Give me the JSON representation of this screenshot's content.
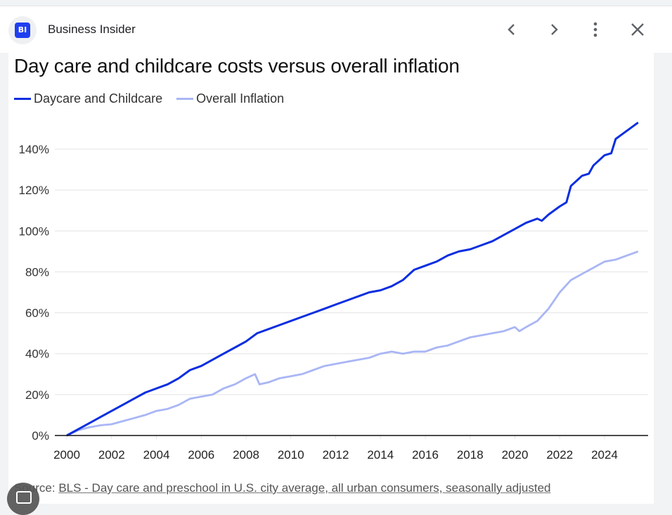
{
  "header": {
    "logo_text": "BI",
    "site_name": "Business Insider",
    "icons": [
      "chevron-left-icon",
      "chevron-right-icon",
      "more-vert-icon",
      "close-icon"
    ]
  },
  "colors": {
    "brand": "#1f3ff0",
    "daycare": "#0a2ee0",
    "inflation": "#a9b6f5"
  },
  "source": {
    "prefix": "Source: ",
    "link_text": "BLS - Day care and preschool in U.S. city average, all urban consumers, seasonally adjusted"
  },
  "chart_data": {
    "type": "line",
    "title": "Day care and childcare costs versus overall inflation",
    "xlabel": "",
    "ylabel": "",
    "legend_position": "top-left",
    "grid": true,
    "xlim": [
      2000,
      2025.6
    ],
    "ylim": [
      0,
      150
    ],
    "x_ticks": [
      "2000",
      "2002",
      "2004",
      "2006",
      "2008",
      "2010",
      "2012",
      "2014",
      "2016",
      "2018",
      "2020",
      "2022",
      "2024"
    ],
    "y_ticks": [
      "0%",
      "20%",
      "40%",
      "60%",
      "80%",
      "100%",
      "120%",
      "140%"
    ],
    "series": [
      {
        "name": "Daycare and Childcare",
        "x": [
          2000,
          2000.5,
          2001,
          2001.5,
          2002,
          2002.5,
          2003,
          2003.5,
          2004,
          2004.5,
          2005,
          2005.5,
          2006,
          2006.5,
          2007,
          2007.5,
          2008,
          2008.5,
          2009,
          2009.5,
          2010,
          2010.5,
          2011,
          2011.5,
          2012,
          2012.5,
          2013,
          2013.5,
          2014,
          2014.5,
          2015,
          2015.5,
          2016,
          2016.5,
          2017,
          2017.5,
          2018,
          2018.5,
          2019,
          2019.5,
          2020,
          2020.5,
          2021,
          2021.2,
          2021.5,
          2022,
          2022.3,
          2022.5,
          2023,
          2023.3,
          2023.5,
          2024,
          2024.3,
          2024.5,
          2025,
          2025.5
        ],
        "values": [
          0,
          3,
          6,
          9,
          12,
          15,
          18,
          21,
          23,
          25,
          28,
          32,
          34,
          37,
          40,
          43,
          46,
          50,
          52,
          54,
          56,
          58,
          60,
          62,
          64,
          66,
          68,
          70,
          71,
          73,
          76,
          81,
          83,
          85,
          88,
          90,
          91,
          93,
          95,
          98,
          101,
          104,
          106,
          105,
          108,
          112,
          114,
          122,
          127,
          128,
          132,
          137,
          138,
          145,
          149,
          153
        ]
      },
      {
        "name": "Overall Inflation",
        "x": [
          2000,
          2000.5,
          2001,
          2001.5,
          2002,
          2002.5,
          2003,
          2003.5,
          2004,
          2004.5,
          2005,
          2005.5,
          2006,
          2006.5,
          2007,
          2007.5,
          2008,
          2008.4,
          2008.6,
          2009,
          2009.5,
          2010,
          2010.5,
          2011,
          2011.5,
          2012,
          2012.5,
          2013,
          2013.5,
          2014,
          2014.5,
          2015,
          2015.5,
          2016,
          2016.5,
          2017,
          2017.5,
          2018,
          2018.5,
          2019,
          2019.5,
          2020,
          2020.2,
          2020.5,
          2021,
          2021.5,
          2022,
          2022.5,
          2023,
          2023.5,
          2024,
          2024.5,
          2025,
          2025.5
        ],
        "values": [
          0,
          2.5,
          4,
          5,
          5.5,
          7,
          8.5,
          10,
          12,
          13,
          15,
          18,
          19,
          20,
          23,
          25,
          28,
          30,
          25,
          26,
          28,
          29,
          30,
          32,
          34,
          35,
          36,
          37,
          38,
          40,
          41,
          40,
          41,
          41,
          43,
          44,
          46,
          48,
          49,
          50,
          51,
          53,
          51,
          53,
          56,
          62,
          70,
          76,
          79,
          82,
          85,
          86,
          88,
          90
        ]
      }
    ]
  }
}
